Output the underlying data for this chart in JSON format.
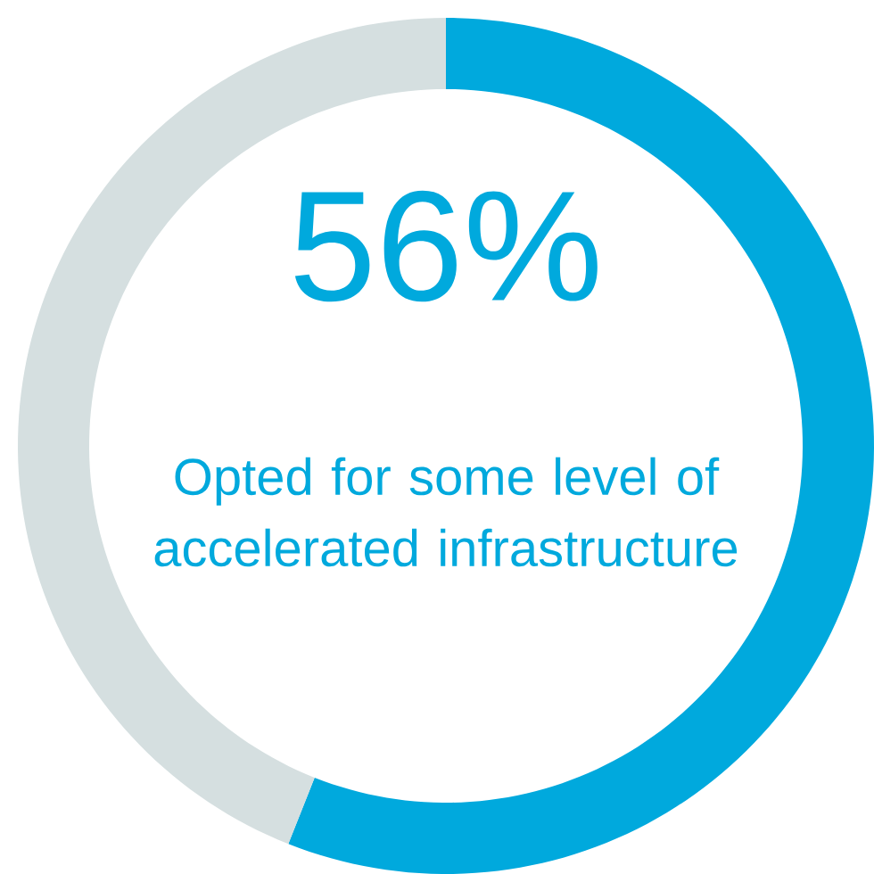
{
  "chart_data": {
    "type": "donut",
    "categories": [
      null,
      null
    ],
    "values": [
      56,
      44
    ],
    "colors": [
      "#00a9dd",
      "#d5dfe0"
    ],
    "value_labels": [
      "56%",
      null
    ],
    "annotations": [
      "Opted for some level of accelerated infrastructure"
    ]
  }
}
